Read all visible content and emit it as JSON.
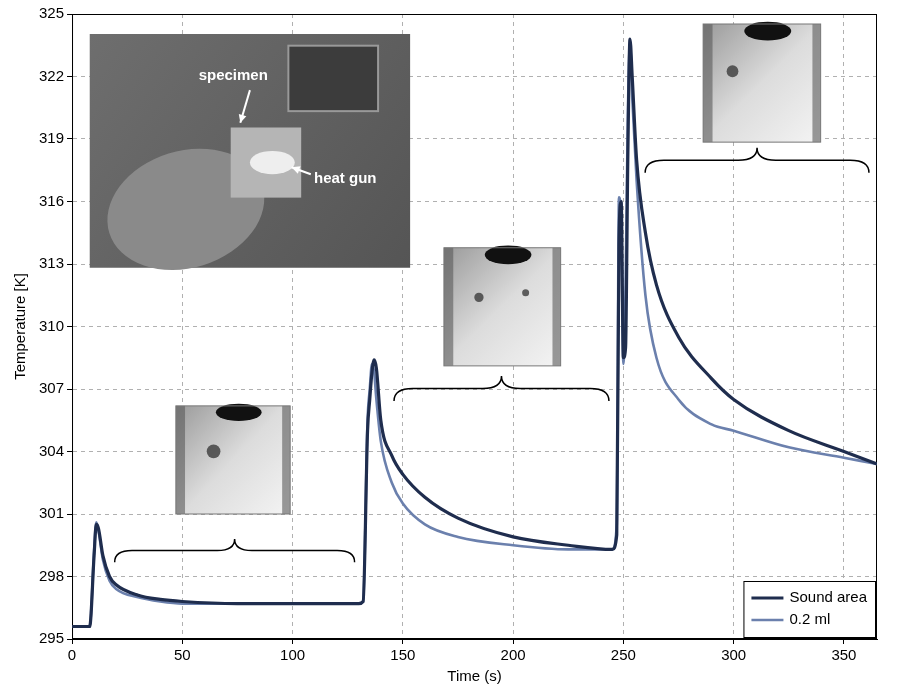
{
  "chart_data": {
    "type": "line",
    "x_label": "Time (s)",
    "y_label": "Temperature [K]",
    "annotations": [
      "specimen",
      "heat gun"
    ],
    "x": [
      0,
      8,
      10,
      11,
      12,
      14,
      17,
      20,
      30,
      40,
      50,
      75,
      100,
      130,
      132,
      134,
      135,
      136,
      137,
      138,
      140,
      145,
      150,
      160,
      175,
      200,
      225,
      245,
      247,
      248,
      249,
      250,
      251,
      252,
      253,
      254,
      256,
      260,
      265,
      275,
      290,
      300,
      325,
      350,
      365
    ],
    "series": [
      {
        "name": "Sound area",
        "color": "#1f2d4e",
        "line_style": "solid",
        "values": [
          295.6,
          295.6,
          299.0,
          300.5,
          300.3,
          299.0,
          298.0,
          297.6,
          297.1,
          296.9,
          296.8,
          296.7,
          296.7,
          296.7,
          296.8,
          305.0,
          306.5,
          307.8,
          308.4,
          308.0,
          305.5,
          303.8,
          302.9,
          301.8,
          300.8,
          299.9,
          299.5,
          299.3,
          300.0,
          314.0,
          316.0,
          308.5,
          309.0,
          318.0,
          323.8,
          322.0,
          318.0,
          314.5,
          312.0,
          309.5,
          307.5,
          306.5,
          305.0,
          304.0,
          303.4
        ]
      },
      {
        "name": "0.2 ml",
        "color": "#6b80ad",
        "line_style": "solid",
        "values": [
          295.6,
          295.6,
          299.2,
          300.6,
          300.2,
          298.8,
          297.8,
          297.4,
          297.0,
          296.8,
          296.7,
          296.7,
          296.7,
          296.7,
          296.8,
          305.5,
          307.0,
          308.2,
          307.8,
          306.5,
          304.5,
          302.5,
          301.5,
          300.5,
          299.9,
          299.5,
          299.3,
          299.3,
          300.5,
          316.2,
          315.0,
          308.2,
          312.0,
          320.0,
          323.5,
          321.0,
          317.0,
          311.5,
          308.5,
          306.5,
          305.3,
          305.0,
          304.2,
          303.7,
          303.4
        ]
      }
    ],
    "xlim": [
      0,
      365
    ],
    "xticks": [
      0,
      50,
      100,
      150,
      200,
      250,
      300,
      350
    ],
    "ylim": [
      295,
      325
    ],
    "yticks": [
      295,
      298,
      301,
      304,
      307,
      310,
      313,
      316,
      319,
      322,
      325
    ],
    "grid": true,
    "legend": "lower right"
  }
}
